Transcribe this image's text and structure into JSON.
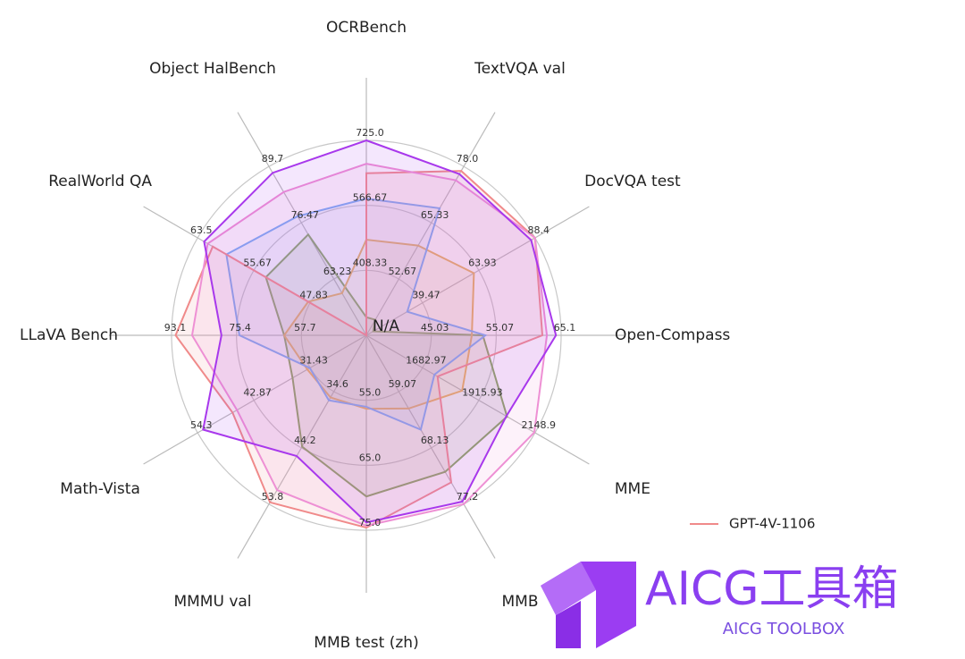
{
  "chart_data": {
    "type": "radar",
    "center_label": "N/A",
    "axes": [
      {
        "label": "OCRBench",
        "lim": [
          250,
          725.0
        ],
        "ticks": [
          408.33,
          566.67,
          {
            "value": 725.0,
            "label": "725.0"
          }
        ]
      },
      {
        "label": "TextVQA val",
        "lim": [
          40,
          78.0
        ],
        "ticks": [
          52.67,
          65.33,
          {
            "value": 78.0,
            "label": "78.0"
          }
        ]
      },
      {
        "label": "DocVQA test",
        "lim": [
          15,
          88.4
        ],
        "ticks": [
          39.47,
          63.93,
          88.4
        ]
      },
      {
        "label": "Open-Compass",
        "lim": [
          35,
          65.1
        ],
        "ticks": [
          45.03,
          55.07,
          65.1
        ]
      },
      {
        "label": "MME",
        "lim": [
          1450,
          2148.9
        ],
        "ticks": [
          1682.97,
          1915.93,
          2148.9
        ]
      },
      {
        "label": "MMB",
        "lim": [
          50,
          77.2
        ],
        "ticks": [
          59.07,
          68.13,
          77.2
        ]
      },
      {
        "label": "MMB test (zh)",
        "lim": [
          45,
          75.0
        ],
        "ticks": [
          {
            "value": 55.0,
            "label": "55.0"
          },
          {
            "value": 65.0,
            "label": "65.0"
          },
          {
            "value": 75.0,
            "label": "75.0"
          }
        ]
      },
      {
        "label": "MMMU val",
        "lim": [
          25,
          53.8
        ],
        "ticks": [
          34.6,
          44.2,
          53.8
        ]
      },
      {
        "label": "Math-Vista",
        "lim": [
          20,
          54.3
        ],
        "ticks": [
          31.43,
          42.87,
          54.3
        ]
      },
      {
        "label": "LLaVA Bench",
        "lim": [
          40,
          93.1
        ],
        "ticks": [
          57.7,
          75.4,
          93.1
        ]
      },
      {
        "label": "RealWorld QA",
        "lim": [
          40,
          63.5
        ],
        "ticks": [
          47.83,
          55.67,
          63.5
        ]
      },
      {
        "label": "Object HalBench",
        "lim": [
          50,
          89.7
        ],
        "ticks": [
          63.23,
          76.47,
          89.7
        ]
      }
    ],
    "series": [
      {
        "color": "#86a65a",
        "values": [
          294,
          43.5,
          18,
          53,
          2033,
          72,
          69.8,
          44,
          35,
          62.4,
          54,
          73.7
        ]
      },
      {
        "color": "#e9b25a",
        "values": [
          483,
          60.2,
          61.8,
          51.3,
          1847,
          61.8,
          56.3,
          35.6,
          32,
          62.4,
          48.1,
          59.9
        ]
      },
      {
        "color": "#78aef5",
        "values": [
          583,
          68.6,
          32.8,
          53.4,
          1732,
          65.2,
          56,
          36.1,
          31.5,
          74.6,
          59.5,
          78
        ]
      },
      {
        "name": "GPT-4V-1106",
        "color": "#f08a8a",
        "values": [
          645,
          77,
          88.4,
          62.2,
          1745,
          73.7,
          74.6,
          53.5,
          47.2,
          92,
          61.4,
          50
        ]
      },
      {
        "color": "#ee90d4",
        "values": [
          668,
          74.9,
          88.4,
          62.9,
          2146,
          77.2,
          74.3,
          51.4,
          46.3,
          87.5,
          62.1,
          83.7
        ]
      },
      {
        "color": "#a838ec",
        "values": [
          725,
          76.3,
          86.7,
          64.3,
          2030,
          76.8,
          73.8,
          45.6,
          53.2,
          79.5,
          62.6,
          88.2
        ]
      }
    ],
    "legend": "lower right"
  },
  "watermark": {
    "title": "AICG工具箱",
    "subtitle": "AICG TOOLBOX"
  }
}
